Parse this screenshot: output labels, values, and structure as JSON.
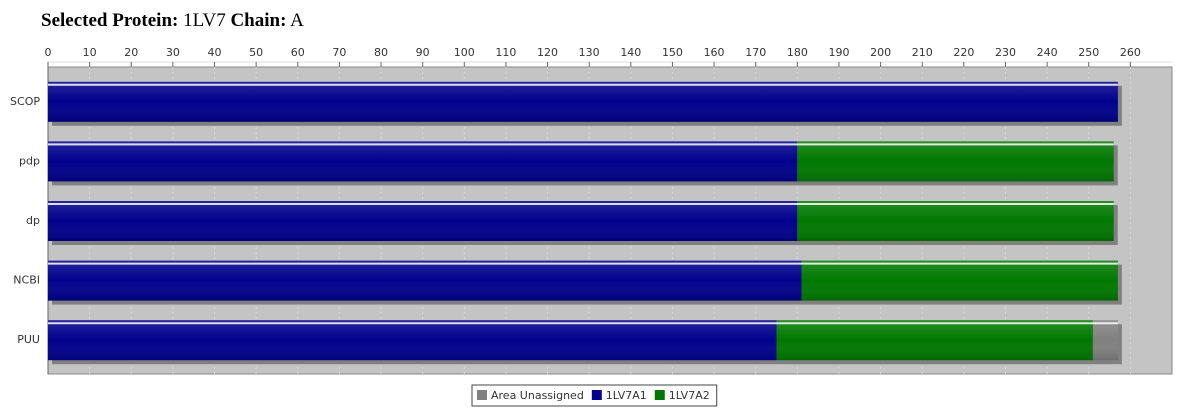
{
  "chart_data": {
    "type": "stacked_barh",
    "title": {
      "protein_label": "Selected Protein:",
      "protein": "1LV7",
      "chain_label": "Chain:",
      "chain": "A"
    },
    "categories": [
      "SCOP",
      "pdp",
      "dp",
      "NCBI",
      "PUU"
    ],
    "series": [
      {
        "name": "Area Unassigned",
        "color": "#808080",
        "values": [
          null,
          null,
          null,
          null,
          6
        ]
      },
      {
        "name": "1LV7A1",
        "color": "#00008c",
        "values": [
          257,
          180,
          180,
          181,
          175
        ]
      },
      {
        "name": "1LV7A2",
        "color": "#007800",
        "values": [
          null,
          76,
          76,
          76,
          76
        ]
      }
    ],
    "xlim": [
      0,
      270
    ],
    "xticks": [
      0,
      10,
      20,
      30,
      40,
      50,
      60,
      70,
      80,
      90,
      100,
      110,
      120,
      130,
      140,
      150,
      160,
      170,
      180,
      190,
      200,
      210,
      220,
      230,
      240,
      250,
      260
    ],
    "grid": true
  }
}
